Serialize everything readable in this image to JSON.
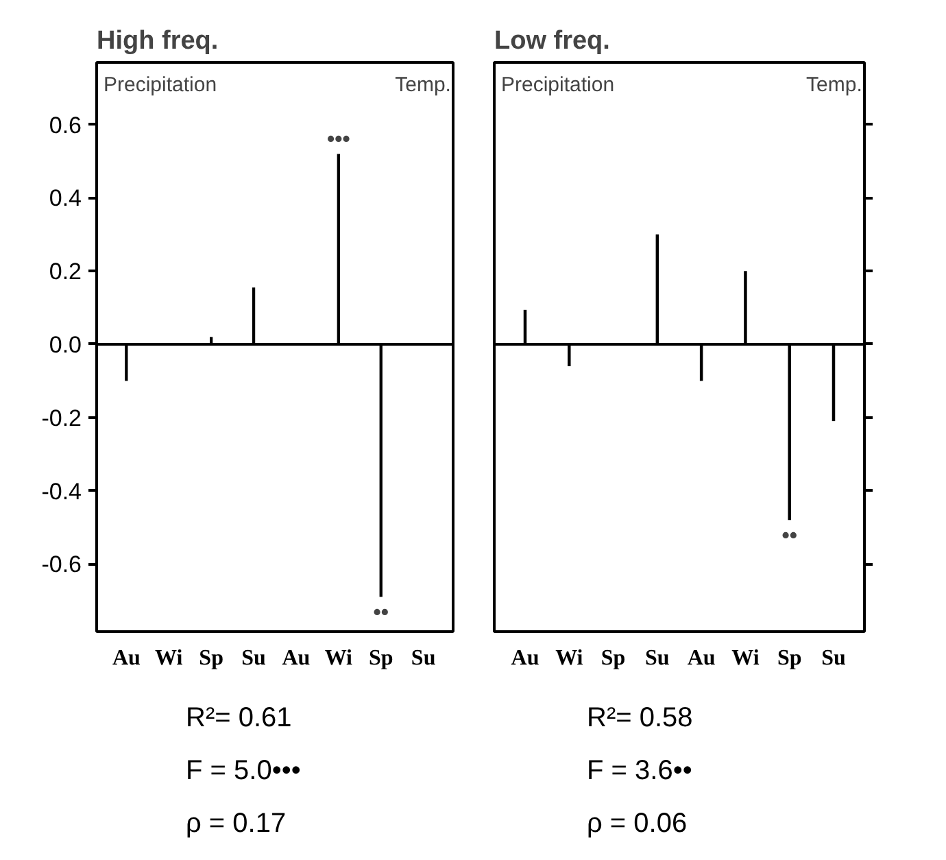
{
  "chart_data": [
    {
      "type": "bar",
      "title": "High  freq.",
      "categories": [
        "Au",
        "Wi",
        "Sp",
        "Su",
        "Au",
        "Wi",
        "Sp",
        "Su"
      ],
      "values": [
        -0.1,
        0.0,
        0.02,
        0.155,
        0.0,
        0.52,
        -0.69,
        0.0
      ],
      "color": "#000000",
      "value_labels": [
        null,
        null,
        null,
        null,
        null,
        "•••",
        "••",
        null
      ],
      "ylim": [
        -0.785,
        0.77
      ],
      "yticks": [
        -0.6,
        -0.4,
        -0.2,
        {
          "value": 0,
          "label": "0.0"
        },
        0.2,
        0.4,
        0.6
      ],
      "ref_lines": [
        {
          "axis": "y",
          "value": 0
        }
      ],
      "grid": false,
      "annotations": [
        "Precipitation",
        "Temp.",
        "R²= 0.61",
        "F = 5.0•••",
        "ρ = 0.17"
      ]
    },
    {
      "type": "bar",
      "title": "Low  freq.",
      "categories": [
        "Au",
        "Wi",
        "Sp",
        "Su",
        "Au",
        "Wi",
        "Sp",
        "Su"
      ],
      "values": [
        0.094,
        -0.06,
        0.0,
        0.3,
        -0.1,
        0.2,
        -0.48,
        -0.21
      ],
      "color": "#000000",
      "value_labels": [
        null,
        null,
        null,
        null,
        null,
        null,
        "••",
        null
      ],
      "ylim": [
        -0.785,
        0.77
      ],
      "yticks": [
        -0.6,
        -0.4,
        -0.2,
        0,
        0.2,
        0.4,
        0.6
      ],
      "ref_lines": [
        {
          "axis": "y",
          "value": 0
        }
      ],
      "grid": false,
      "tick_labels": "x",
      "annotations": [
        "Precipitation",
        "Temp.",
        "R²= 0.58",
        "F = 3.6••",
        "ρ = 0.06"
      ]
    }
  ]
}
